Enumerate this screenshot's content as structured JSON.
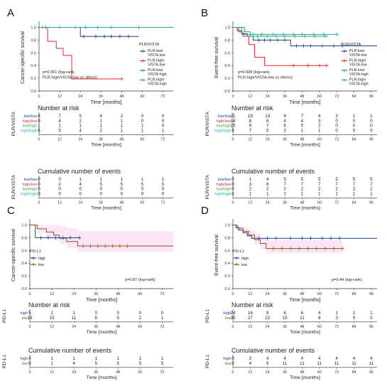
{
  "chart_data": [
    {
      "panel": "A",
      "type": "line",
      "step": true,
      "ylabel": "Cancer-specific survival",
      "xlabel": "Time [months]",
      "xlim": [
        0,
        78
      ],
      "ylim": [
        0,
        1.05
      ],
      "x_ticks": [
        0,
        12,
        24,
        36,
        48,
        60,
        72
      ],
      "y_ticks": [
        "0.0",
        "0.2",
        "0.4",
        "0.6",
        "0.8",
        "1.0"
      ],
      "legend_title": "PLR/VISTA",
      "legend_position": "right",
      "pvalue_lines": [
        "p=0.001 (log-rank;",
        "PLR-high/VISTA-low vs others)"
      ],
      "series": [
        {
          "name": "PLR-low/ VISTA-low",
          "color": "#1f3f8c",
          "x": [
            0,
            24,
            58
          ],
          "y": [
            1.0,
            0.857,
            0.857
          ],
          "censor_x": [
            4,
            26,
            33,
            38,
            42,
            47,
            52
          ],
          "censor_y": [
            1.0,
            0.857,
            0.857,
            0.857,
            0.857,
            0.857,
            0.857
          ]
        },
        {
          "name": "PLR-high/ VISTA-low",
          "color": "#e8262b",
          "x": [
            0,
            5,
            10,
            14,
            19,
            48
          ],
          "y": [
            1.0,
            0.78,
            0.67,
            0.56,
            0.19,
            0.19
          ],
          "censor_x": [
            48
          ],
          "censor_y": [
            0.19
          ]
        },
        {
          "name": "PLR-low/ VISTA-high",
          "color": "#1faa4a",
          "x": [
            0,
            78
          ],
          "y": [
            1.0,
            1.0
          ],
          "censor_x": [],
          "censor_y": []
        },
        {
          "name": "PLR-high/ VISTA-high",
          "color": "#19a7b7",
          "x": [
            0,
            78
          ],
          "y": [
            1.0,
            1.0
          ],
          "censor_x": [
            2,
            12,
            21,
            27,
            34,
            42,
            58
          ],
          "censor_y": [
            1.0,
            1.0,
            1.0,
            1.0,
            1.0,
            1.0,
            1.0
          ]
        }
      ],
      "risk_table": {
        "title": "Number at risk",
        "axis_label": "PLR/VISTA",
        "rows": [
          {
            "label": "low/low",
            "color": "#1f3f8c",
            "values": [
              8,
              7,
              5,
              4,
              2,
              0,
              0
            ]
          },
          {
            "label": "high/low",
            "color": "#e8262b",
            "values": [
              9,
              4,
              2,
              1,
              1,
              0,
              0
            ]
          },
          {
            "label": "low/high",
            "color": "#1faa4a",
            "values": [
              1,
              1,
              1,
              1,
              1,
              1,
              0
            ]
          },
          {
            "label": "high/high",
            "color": "#19a7b7",
            "values": [
              6,
              5,
              4,
              2,
              1,
              1,
              1
            ]
          }
        ]
      },
      "events_table": {
        "title": "Cumulative number of events",
        "axis_label": "PLR/VISTA",
        "rows": [
          {
            "label": "low/low",
            "color": "#1f3f8c",
            "values": [
              0,
              0,
              1,
              1,
              1,
              1,
              1
            ]
          },
          {
            "label": "high/low",
            "color": "#e8262b",
            "values": [
              0,
              2,
              4,
              5,
              5,
              5,
              5
            ]
          },
          {
            "label": "low/high",
            "color": "#1faa4a",
            "values": [
              0,
              0,
              0,
              0,
              0,
              0,
              0
            ]
          },
          {
            "label": "high/high",
            "color": "#19a7b7",
            "values": [
              0,
              0,
              0,
              0,
              0,
              0,
              0
            ]
          }
        ]
      }
    },
    {
      "panel": "B",
      "type": "line",
      "step": true,
      "ylabel": "Event-free survival",
      "xlabel": "Time [months]",
      "xlim": [
        0,
        100
      ],
      "ylim": [
        0,
        1.05
      ],
      "x_ticks": [
        0,
        12,
        24,
        36,
        48,
        60,
        72,
        84,
        96
      ],
      "y_ticks": [
        "0.0",
        "0.2",
        "0.4",
        "0.6",
        "0.8",
        "1.0"
      ],
      "legend_title": "PLR/VISTA",
      "legend_position": "right",
      "pvalue_lines": [
        "p=0.008 (log-rank;",
        "PLR-high/VISTA-low vs others)"
      ],
      "series": [
        {
          "name": "PLR-low/ VISTA-low",
          "color": "#1f3f8c",
          "x": [
            0,
            3,
            6,
            10,
            14,
            40,
            100
          ],
          "y": [
            1.0,
            0.95,
            0.9,
            0.86,
            0.8,
            0.71,
            0.71
          ],
          "censor_x": [
            18,
            22,
            26,
            31,
            36,
            44,
            49,
            54,
            62,
            70,
            76
          ],
          "censor_y": [
            0.8,
            0.8,
            0.8,
            0.8,
            0.8,
            0.71,
            0.71,
            0.71,
            0.71,
            0.71,
            0.71
          ]
        },
        {
          "name": "PLR-high/ VISTA-low",
          "color": "#e8262b",
          "x": [
            0,
            4,
            7,
            11,
            15,
            22,
            65
          ],
          "y": [
            1.0,
            0.93,
            0.86,
            0.73,
            0.53,
            0.4,
            0.4
          ],
          "censor_x": [
            42,
            52,
            60,
            65
          ],
          "censor_y": [
            0.4,
            0.4,
            0.4,
            0.4
          ]
        },
        {
          "name": "PLR-low/ VISTA-high",
          "color": "#1faa4a",
          "x": [
            0,
            8,
            12,
            66
          ],
          "y": [
            1.0,
            0.93,
            0.86,
            0.86
          ],
          "censor_x": [
            17,
            24,
            30,
            36,
            43,
            50,
            57,
            64
          ],
          "censor_y": [
            0.86,
            0.86,
            0.86,
            0.86,
            0.86,
            0.86,
            0.86,
            0.86
          ]
        },
        {
          "name": "PLR-high/ VISTA-high",
          "color": "#19a7b7",
          "x": [
            0,
            6,
            72
          ],
          "y": [
            1.0,
            0.89,
            0.89
          ],
          "censor_x": [
            14,
            20,
            28,
            35,
            42,
            48,
            56,
            63,
            72
          ],
          "censor_y": [
            0.89,
            0.89,
            0.89,
            0.89,
            0.89,
            0.89,
            0.89,
            0.89,
            0.89
          ]
        }
      ],
      "risk_table": {
        "title": "Number at risk",
        "axis_label": "PLR/VISTA",
        "rows": [
          {
            "label": "low/low",
            "color": "#1f3f8c",
            "values": [
              21,
              19,
              13,
              9,
              7,
              4,
              3,
              1,
              1
            ]
          },
          {
            "label": "high/low",
            "color": "#e8262b",
            "values": [
              14,
              8,
              6,
              4,
              4,
              3,
              0,
              0,
              0
            ]
          },
          {
            "label": "low/high",
            "color": "#1faa4a",
            "values": [
              15,
              9,
              7,
              6,
              5,
              2,
              0,
              0,
              0
            ]
          },
          {
            "label": "high/high",
            "color": "#19a7b7",
            "values": [
              9,
              7,
              5,
              2,
              1,
              1,
              0,
              0,
              0
            ]
          }
        ]
      },
      "events_table": {
        "title": "Cumulative number of events",
        "axis_label": "PLR/VISTA",
        "rows": [
          {
            "label": "low/low",
            "color": "#1f3f8c",
            "values": [
              0,
              1,
              4,
              5,
              5,
              5,
              5,
              5,
              5
            ]
          },
          {
            "label": "high/low",
            "color": "#e8262b",
            "values": [
              0,
              3,
              6,
              7,
              7,
              7,
              7,
              7,
              7
            ]
          },
          {
            "label": "low/high",
            "color": "#1faa4a",
            "values": [
              0,
              2,
              2,
              2,
              2,
              2,
              2,
              2,
              2
            ]
          },
          {
            "label": "high/high",
            "color": "#19a7b7",
            "values": [
              0,
              1,
              1,
              1,
              1,
              1,
              1,
              1,
              1
            ]
          }
        ]
      }
    },
    {
      "panel": "C",
      "type": "line",
      "step": true,
      "ylabel": "Cancer-specific survival",
      "xlabel": "Time [months]",
      "xlim": [
        0,
        78
      ],
      "ylim": [
        0,
        1.05
      ],
      "x_ticks": [
        0,
        12,
        24,
        36,
        48,
        60,
        72
      ],
      "y_ticks": [
        "0.0",
        "0.2",
        "0.4",
        "0.6",
        "0.8",
        "1.0"
      ],
      "legend_title": "PD-L1",
      "legend_position": "bottom-left",
      "pvalue_lines": [
        "p=0.87 (log-rank)"
      ],
      "bands": [
        {
          "color": "#e24ec8",
          "x": [
            0,
            4,
            9,
            13,
            16,
            20,
            26,
            78
          ],
          "upper": [
            1.0,
            1.0,
            1.0,
            1.0,
            0.98,
            0.95,
            0.9,
            0.9
          ],
          "lower": [
            1.0,
            0.88,
            0.8,
            0.76,
            0.7,
            0.64,
            0.58,
            0.58
          ]
        }
      ],
      "series": [
        {
          "name": "high",
          "color": "#1f3f8c",
          "x": [
            0,
            3,
            27
          ],
          "y": [
            1.0,
            0.8,
            0.8
          ],
          "censor_x": [
            6,
            10,
            14,
            18,
            22,
            27
          ],
          "censor_y": [
            0.8,
            0.8,
            0.8,
            0.8,
            0.8,
            0.8
          ]
        },
        {
          "name": "low",
          "color": "#8a5a12",
          "x": [
            0,
            4,
            9,
            13,
            16,
            20,
            26,
            78
          ],
          "y": [
            1.0,
            0.94,
            0.89,
            0.84,
            0.79,
            0.74,
            0.67,
            0.67
          ],
          "censor_x": [
            29,
            33,
            37,
            41,
            45,
            49,
            53
          ],
          "censor_y": [
            0.67,
            0.67,
            0.67,
            0.67,
            0.67,
            0.67,
            0.67
          ]
        }
      ],
      "risk_table": {
        "title": "Number at risk",
        "axis_label": "PD-L1",
        "rows": [
          {
            "label": "high",
            "color": "#1f3f8c",
            "values": [
              5,
              2,
              1,
              0,
              0,
              0,
              0
            ]
          },
          {
            "label": "low",
            "color": "#8a5a12",
            "values": [
              19,
              15,
              11,
              8,
              5,
              2,
              1
            ]
          }
        ]
      },
      "events_table": {
        "title": "Cumulative number of events",
        "axis_label": "PD-L1",
        "rows": [
          {
            "label": "high",
            "color": "#1f3f8c",
            "values": [
              0,
              1,
              1,
              1,
              1,
              1,
              1
            ]
          },
          {
            "label": "low",
            "color": "#8a5a12",
            "values": [
              0,
              1,
              4,
              5,
              5,
              5,
              5
            ]
          }
        ]
      }
    },
    {
      "panel": "D",
      "type": "line",
      "step": true,
      "ylabel": "Event-free survival",
      "xlabel": "Time [months]",
      "xlim": [
        0,
        100
      ],
      "ylim": [
        0,
        1.05
      ],
      "x_ticks": [
        0,
        12,
        24,
        36,
        48,
        60,
        72,
        84,
        96
      ],
      "y_ticks": [
        "0.0",
        "0.2",
        "0.4",
        "0.6",
        "0.8",
        "1.0"
      ],
      "legend_title": "PD-L1",
      "legend_position": "bottom-left",
      "pvalue_lines": [
        "p=0.44 (log-rank)"
      ],
      "bands": [
        {
          "color": "#e24ec8",
          "x": [
            0,
            3,
            7,
            11,
            15,
            19,
            23,
            76
          ],
          "upper": [
            1.0,
            0.99,
            0.96,
            0.92,
            0.86,
            0.8,
            0.76,
            0.76
          ],
          "lower": [
            1.0,
            0.9,
            0.84,
            0.77,
            0.69,
            0.62,
            0.56,
            0.56
          ]
        }
      ],
      "series": [
        {
          "name": "high",
          "color": "#1f3f8c",
          "x": [
            0,
            2,
            4,
            7,
            10,
            13,
            100
          ],
          "y": [
            1.0,
            0.96,
            0.92,
            0.88,
            0.83,
            0.79,
            0.79
          ],
          "censor_x": [
            18,
            24,
            30,
            40,
            48,
            54,
            62,
            68,
            74
          ],
          "censor_y": [
            0.79,
            0.79,
            0.79,
            0.79,
            0.79,
            0.79,
            0.79,
            0.79,
            0.79
          ]
        },
        {
          "name": "low",
          "color": "#8a5a12",
          "x": [
            0,
            3,
            7,
            11,
            15,
            19,
            23,
            76
          ],
          "y": [
            1.0,
            0.95,
            0.9,
            0.84,
            0.77,
            0.71,
            0.63,
            0.63
          ],
          "censor_x": [
            28,
            34,
            40,
            46,
            52,
            58,
            64,
            70,
            76
          ],
          "censor_y": [
            0.63,
            0.63,
            0.63,
            0.63,
            0.63,
            0.63,
            0.63,
            0.63,
            0.63
          ]
        }
      ],
      "risk_table": {
        "title": "Number at risk",
        "axis_label": "PD-L1",
        "rows": [
          {
            "label": "high",
            "color": "#1f3f8c",
            "values": [
              24,
              16,
              9,
              6,
              6,
              4,
              1,
              1,
              1
            ]
          },
          {
            "label": "low",
            "color": "#8a5a12",
            "values": [
              35,
              27,
              22,
              15,
              11,
              6,
              3,
              0,
              0
            ]
          }
        ]
      },
      "events_table": {
        "title": "Cumulative number of events",
        "axis_label": "PD-L1",
        "rows": [
          {
            "label": "high",
            "color": "#1f3f8c",
            "values": [
              0,
              3,
              4,
              4,
              4,
              4,
              4,
              4,
              4
            ]
          },
          {
            "label": "low",
            "color": "#8a5a12",
            "values": [
              0,
              4,
              9,
              11,
              11,
              11,
              11,
              11,
              11
            ]
          }
        ]
      }
    }
  ]
}
